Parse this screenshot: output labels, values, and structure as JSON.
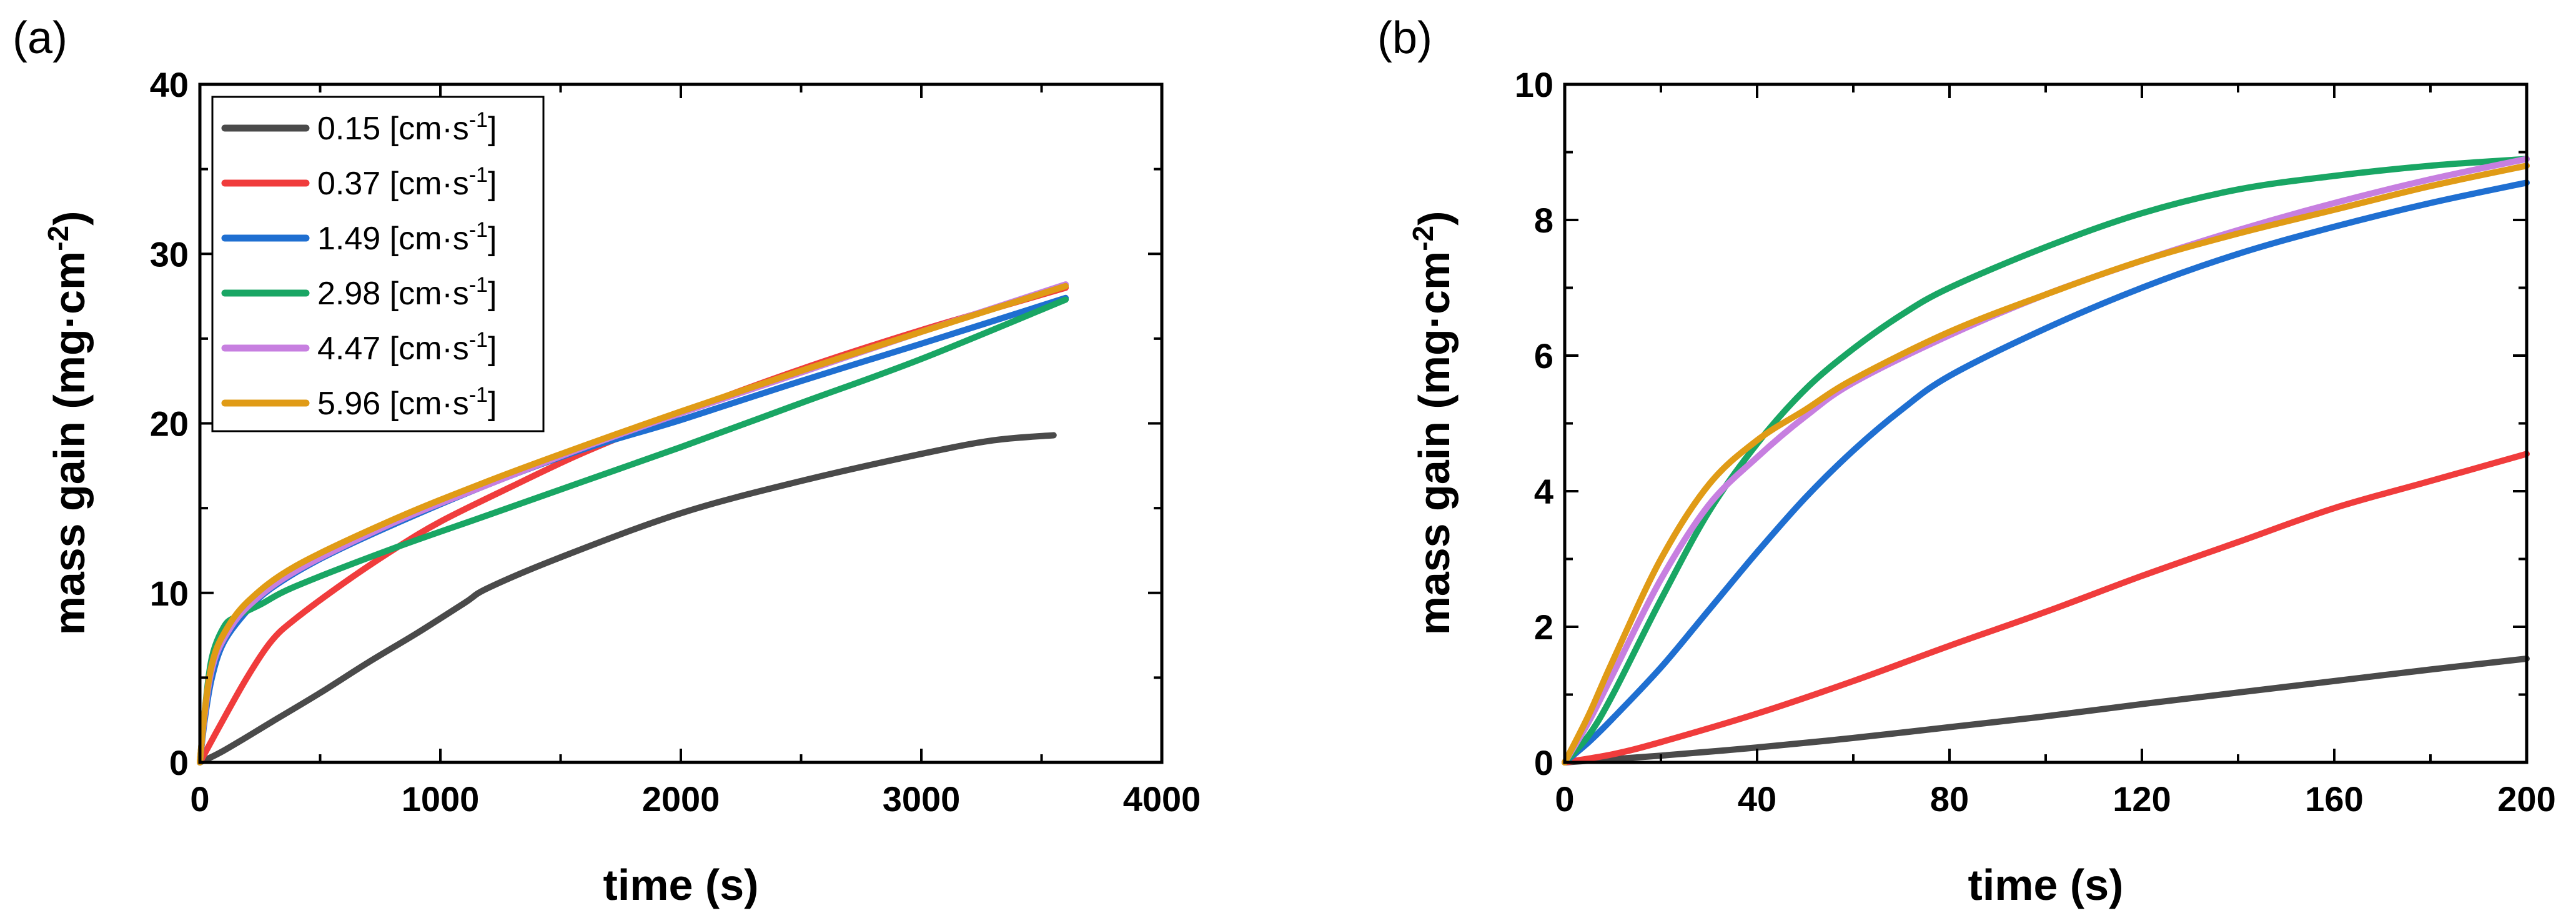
{
  "chart_data": [
    {
      "type": "line",
      "panel_label": "(a)",
      "xlabel": "time (s)",
      "ylabel_main": "mass gain (mg·cm",
      "ylabel_sup": "-2",
      "ylabel_close": ")",
      "xlim": [
        0,
        4000
      ],
      "ylim": [
        0,
        40
      ],
      "xticks": [
        0,
        1000,
        2000,
        3000,
        4000
      ],
      "yticks": [
        0,
        10,
        20,
        30,
        40
      ],
      "legend_position": "top-left",
      "series": [
        {
          "name": "0.15",
          "unit": "[cm·s",
          "sup": "-1",
          "close": "]",
          "color": "#4a4a4a",
          "points": [
            [
              0,
              0
            ],
            [
              100,
              0.7
            ],
            [
              300,
              2.4
            ],
            [
              500,
              4.1
            ],
            [
              700,
              5.9
            ],
            [
              900,
              7.6
            ],
            [
              1100,
              9.4
            ],
            [
              1200,
              10.3
            ],
            [
              1500,
              12.1
            ],
            [
              2000,
              14.7
            ],
            [
              2500,
              16.6
            ],
            [
              3000,
              18.2
            ],
            [
              3300,
              19.0
            ],
            [
              3550,
              19.3
            ]
          ]
        },
        {
          "name": "0.37",
          "unit": "[cm·s",
          "sup": "-1",
          "close": "]",
          "color": "#f03c3c",
          "points": [
            [
              0,
              0
            ],
            [
              100,
              2.6
            ],
            [
              200,
              5.1
            ],
            [
              300,
              7.2
            ],
            [
              400,
              8.5
            ],
            [
              600,
              10.6
            ],
            [
              800,
              12.5
            ],
            [
              1000,
              14.2
            ],
            [
              1300,
              16.3
            ],
            [
              1600,
              18.3
            ],
            [
              2000,
              20.6
            ],
            [
              2500,
              23.2
            ],
            [
              3000,
              25.5
            ],
            [
              3600,
              28.0
            ]
          ]
        },
        {
          "name": "1.49",
          "unit": "[cm·s",
          "sup": "-1",
          "close": "]",
          "color": "#1f6fd1",
          "points": [
            [
              0,
              0
            ],
            [
              20,
              2.5
            ],
            [
              50,
              5.0
            ],
            [
              100,
              7.1
            ],
            [
              200,
              9.0
            ],
            [
              300,
              10.3
            ],
            [
              500,
              12.0
            ],
            [
              800,
              14.0
            ],
            [
              1200,
              16.4
            ],
            [
              1600,
              18.5
            ],
            [
              2000,
              20.2
            ],
            [
              2500,
              22.5
            ],
            [
              3000,
              24.7
            ],
            [
              3600,
              27.4
            ]
          ]
        },
        {
          "name": "2.98",
          "unit": "[cm·s",
          "sup": "-1",
          "close": "]",
          "color": "#19a664",
          "points": [
            [
              0,
              0
            ],
            [
              20,
              3.0
            ],
            [
              50,
              6.2
            ],
            [
              100,
              8.0
            ],
            [
              150,
              8.6
            ],
            [
              250,
              9.3
            ],
            [
              400,
              10.4
            ],
            [
              800,
              12.6
            ],
            [
              1200,
              14.6
            ],
            [
              1600,
              16.6
            ],
            [
              2000,
              18.6
            ],
            [
              2500,
              21.2
            ],
            [
              3000,
              23.8
            ],
            [
              3600,
              27.3
            ]
          ]
        },
        {
          "name": "4.47",
          "unit": "[cm·s",
          "sup": "-1",
          "close": "]",
          "color": "#c77fe0",
          "points": [
            [
              0,
              0
            ],
            [
              20,
              2.8
            ],
            [
              50,
              5.5
            ],
            [
              100,
              7.3
            ],
            [
              200,
              9.2
            ],
            [
              400,
              11.3
            ],
            [
              800,
              14.1
            ],
            [
              1200,
              16.4
            ],
            [
              1600,
              18.6
            ],
            [
              2000,
              20.6
            ],
            [
              2500,
              23.0
            ],
            [
              3000,
              25.4
            ],
            [
              3600,
              28.2
            ]
          ]
        },
        {
          "name": "5.96",
          "unit": "[cm·s",
          "sup": "-1",
          "close": "]",
          "color": "#e09b16",
          "points": [
            [
              0,
              0
            ],
            [
              20,
              3.0
            ],
            [
              50,
              5.8
            ],
            [
              100,
              7.6
            ],
            [
              200,
              9.5
            ],
            [
              400,
              11.6
            ],
            [
              800,
              14.3
            ],
            [
              1200,
              16.6
            ],
            [
              1600,
              18.7
            ],
            [
              2000,
              20.7
            ],
            [
              2500,
              23.1
            ],
            [
              3000,
              25.4
            ],
            [
              3600,
              28.1
            ]
          ]
        }
      ]
    },
    {
      "type": "line",
      "panel_label": "(b)",
      "xlabel": "time (s)",
      "ylabel_main": "mass gain (mg·cm",
      "ylabel_sup": "-2",
      "ylabel_close": ")",
      "xlim": [
        0,
        200
      ],
      "ylim": [
        0,
        10
      ],
      "xticks": [
        0,
        40,
        80,
        120,
        160,
        200
      ],
      "yticks": [
        0,
        2,
        4,
        6,
        8,
        10
      ],
      "series": [
        {
          "name": "0.15",
          "color": "#4a4a4a",
          "points": [
            [
              0,
              0
            ],
            [
              20,
              0.1
            ],
            [
              40,
              0.22
            ],
            [
              60,
              0.36
            ],
            [
              80,
              0.52
            ],
            [
              100,
              0.68
            ],
            [
              120,
              0.86
            ],
            [
              140,
              1.03
            ],
            [
              160,
              1.2
            ],
            [
              180,
              1.37
            ],
            [
              200,
              1.53
            ]
          ]
        },
        {
          "name": "0.37",
          "color": "#f03c3c",
          "points": [
            [
              0,
              0
            ],
            [
              10,
              0.12
            ],
            [
              20,
              0.3
            ],
            [
              40,
              0.72
            ],
            [
              60,
              1.2
            ],
            [
              80,
              1.72
            ],
            [
              100,
              2.22
            ],
            [
              120,
              2.75
            ],
            [
              140,
              3.25
            ],
            [
              160,
              3.75
            ],
            [
              180,
              4.15
            ],
            [
              200,
              4.55
            ]
          ]
        },
        {
          "name": "1.49",
          "color": "#1f6fd1",
          "points": [
            [
              0,
              0
            ],
            [
              5,
              0.3
            ],
            [
              10,
              0.65
            ],
            [
              20,
              1.4
            ],
            [
              30,
              2.25
            ],
            [
              40,
              3.1
            ],
            [
              50,
              3.9
            ],
            [
              60,
              4.6
            ],
            [
              70,
              5.2
            ],
            [
              80,
              5.7
            ],
            [
              100,
              6.4
            ],
            [
              120,
              7.0
            ],
            [
              140,
              7.5
            ],
            [
              160,
              7.9
            ],
            [
              180,
              8.25
            ],
            [
              200,
              8.55
            ]
          ]
        },
        {
          "name": "2.98",
          "color": "#19a664",
          "points": [
            [
              0,
              0
            ],
            [
              5,
              0.4
            ],
            [
              10,
              1.0
            ],
            [
              20,
              2.4
            ],
            [
              30,
              3.7
            ],
            [
              40,
              4.7
            ],
            [
              50,
              5.5
            ],
            [
              60,
              6.1
            ],
            [
              70,
              6.6
            ],
            [
              80,
              7.0
            ],
            [
              100,
              7.6
            ],
            [
              120,
              8.1
            ],
            [
              140,
              8.45
            ],
            [
              160,
              8.65
            ],
            [
              180,
              8.8
            ],
            [
              200,
              8.9
            ]
          ]
        },
        {
          "name": "4.47",
          "color": "#c77fe0",
          "points": [
            [
              0,
              0
            ],
            [
              5,
              0.6
            ],
            [
              10,
              1.3
            ],
            [
              20,
              2.7
            ],
            [
              30,
              3.8
            ],
            [
              40,
              4.5
            ],
            [
              50,
              5.1
            ],
            [
              60,
              5.6
            ],
            [
              80,
              6.3
            ],
            [
              100,
              6.9
            ],
            [
              120,
              7.4
            ],
            [
              140,
              7.85
            ],
            [
              160,
              8.25
            ],
            [
              180,
              8.6
            ],
            [
              200,
              8.9
            ]
          ]
        },
        {
          "name": "5.96",
          "color": "#e09b16",
          "points": [
            [
              0,
              0
            ],
            [
              5,
              0.7
            ],
            [
              10,
              1.5
            ],
            [
              20,
              3.0
            ],
            [
              30,
              4.1
            ],
            [
              40,
              4.75
            ],
            [
              50,
              5.2
            ],
            [
              60,
              5.65
            ],
            [
              80,
              6.35
            ],
            [
              100,
              6.9
            ],
            [
              120,
              7.4
            ],
            [
              140,
              7.8
            ],
            [
              160,
              8.15
            ],
            [
              180,
              8.5
            ],
            [
              200,
              8.8
            ]
          ]
        }
      ]
    }
  ]
}
